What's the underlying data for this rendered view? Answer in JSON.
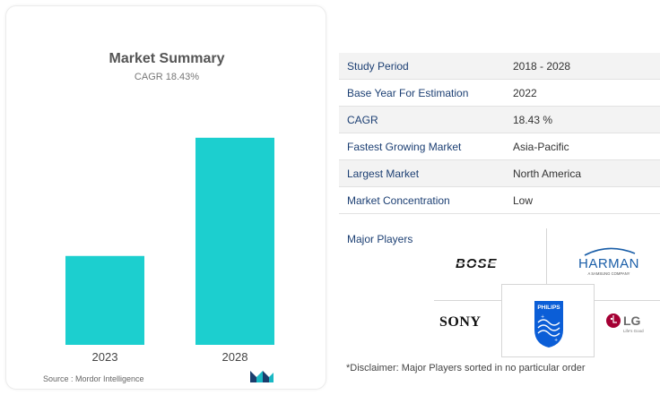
{
  "chart_data": {
    "type": "bar",
    "title": "Market Summary",
    "subtitle": "CAGR 18.43%",
    "categories": [
      "2023",
      "2028"
    ],
    "values": [
      1,
      2.33
    ],
    "ylim": [
      0,
      2.6
    ],
    "grid": false,
    "bar_color": "#1ccfcf"
  },
  "source": "Source : Mordor Intelligence",
  "brand_logo_icon": "mordor-intelligence-logo-icon",
  "info_table": [
    {
      "label": "Study Period",
      "value": "2018 - 2028"
    },
    {
      "label": "Base Year For Estimation",
      "value": "2022"
    },
    {
      "label": "CAGR",
      "value": "18.43 %"
    },
    {
      "label": "Fastest Growing Market",
      "value": "Asia-Pacific"
    },
    {
      "label": "Largest Market",
      "value": "North America"
    },
    {
      "label": "Market Concentration",
      "value": "Low"
    }
  ],
  "major_players_label": "Major Players",
  "players": [
    {
      "name": "BOSE",
      "icon": "bose-logo"
    },
    {
      "name": "HARMAN",
      "tagline": "A SAMSUNG COMPANY",
      "icon": "harman-logo"
    },
    {
      "name": "SONY",
      "icon": "sony-logo"
    },
    {
      "name": "PHILIPS",
      "icon": "philips-shield-logo"
    },
    {
      "name": "LG",
      "tagline": "Life's Good",
      "icon": "lg-logo"
    }
  ],
  "disclaimer": "*Disclaimer: Major Players sorted in no particular order",
  "colors": {
    "accent": "#1ccfcf",
    "label": "#1c3f73",
    "philips": "#0b5ed7",
    "lg": "#a50034",
    "harman": "#1a5ea8"
  }
}
